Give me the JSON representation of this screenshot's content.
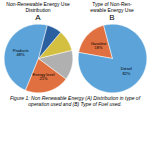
{
  "chart_data": [
    {
      "type": "pie",
      "title": "A",
      "subtitle": "Non-Renewable Energy Use\nDistribution",
      "categories": [
        "Products",
        "Energy level",
        null,
        null,
        null
      ],
      "values": [
        48,
        21,
        14,
        10,
        7
      ],
      "value_labels": [
        "48%",
        "21%",
        null,
        null,
        null
      ],
      "colors": [
        "#5ba3d9",
        "#e07040",
        "#b0b0b0",
        "#d4c040",
        "#2a5fa0"
      ],
      "data_labels": true
    },
    {
      "type": "pie",
      "title": "B",
      "subtitle": "Type of Non-Ren-\newable Energy Use",
      "categories": [
        "Gasoline",
        "Diesel"
      ],
      "values": [
        18,
        82
      ],
      "value_labels": [
        "18%",
        "82%"
      ],
      "colors": [
        "#e07040",
        "#5ba3d9"
      ],
      "data_labels": true
    }
  ],
  "caption": "Figure 1: Non Renewable Energy (A) Distribution in type of operation used and (B) Type of Fuel used."
}
